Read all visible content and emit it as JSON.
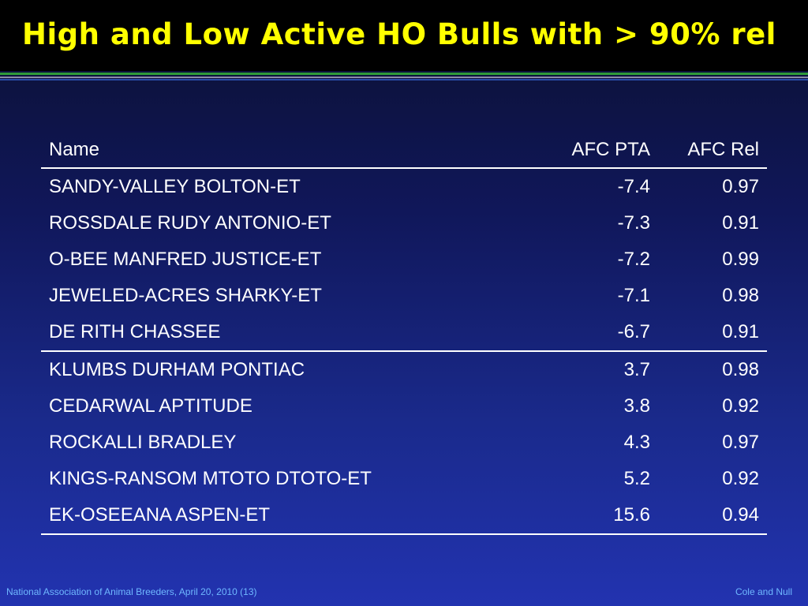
{
  "slide": {
    "title": "High and Low Active HO Bulls with > 90% rel"
  },
  "table": {
    "headers": {
      "name": "Name",
      "pta": "AFC PTA",
      "rel": "AFC Rel"
    },
    "rows": [
      {
        "name": "SANDY-VALLEY BOLTON-ET",
        "pta": "-7.4",
        "rel": "0.97"
      },
      {
        "name": "ROSSDALE RUDY ANTONIO-ET",
        "pta": "-7.3",
        "rel": "0.91"
      },
      {
        "name": "O-BEE MANFRED JUSTICE-ET",
        "pta": "-7.2",
        "rel": "0.99"
      },
      {
        "name": "JEWELED-ACRES SHARKY-ET",
        "pta": "-7.1",
        "rel": "0.98"
      },
      {
        "name": "DE RITH CHASSEE",
        "pta": "-6.7",
        "rel": "0.91"
      },
      {
        "name": "KLUMBS DURHAM PONTIAC",
        "pta": "3.7",
        "rel": "0.98"
      },
      {
        "name": "CEDARWAL APTITUDE",
        "pta": "3.8",
        "rel": "0.92"
      },
      {
        "name": "ROCKALLI BRADLEY",
        "pta": "4.3",
        "rel": "0.97"
      },
      {
        "name": "KINGS-RANSOM MTOTO DTOTO-ET",
        "pta": "5.2",
        "rel": "0.92"
      },
      {
        "name": "EK-OSEEANA ASPEN-ET",
        "pta": "15.6",
        "rel": "0.94"
      }
    ]
  },
  "footer": {
    "left": "National Association of Animal Breeders, April 20, 2010 (13)",
    "right": "Cole and Null"
  },
  "colors": {
    "title": "#ffff00",
    "footer": "#6fb8ff",
    "text": "#ffffff",
    "accent_rule": "#2f9a3a"
  }
}
